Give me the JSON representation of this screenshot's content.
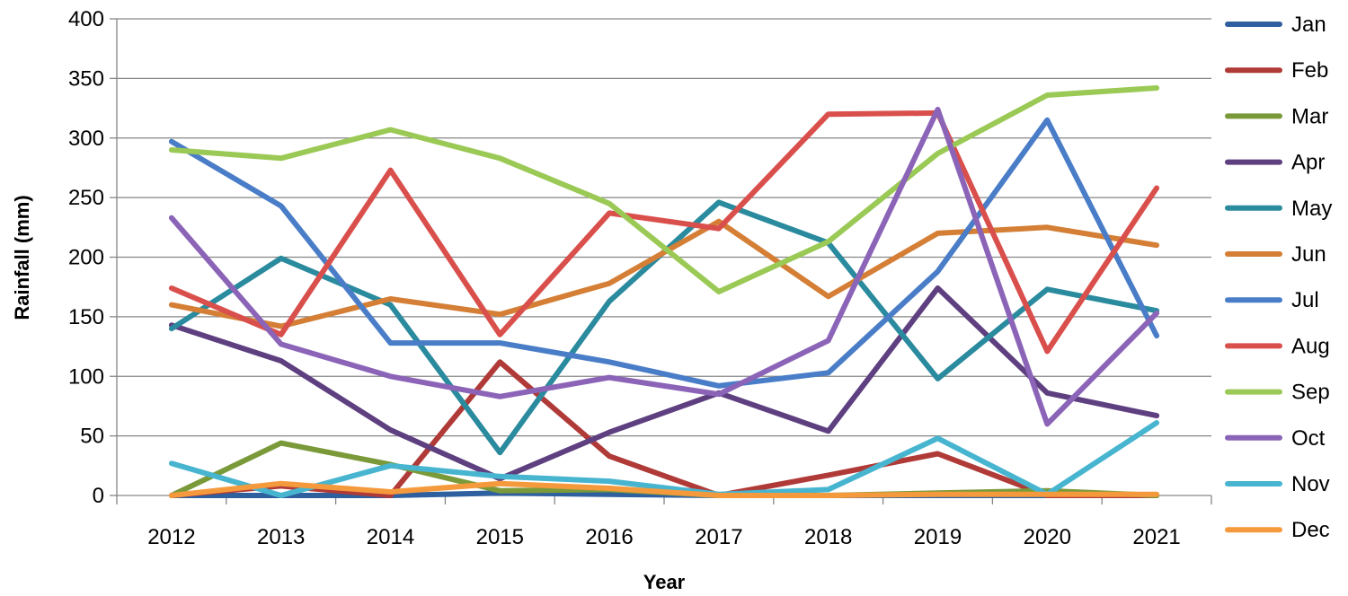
{
  "chart_data": {
    "type": "line",
    "xlabel": "Year",
    "ylabel": "Rainfall (mm)",
    "ylim": [
      0,
      400
    ],
    "yticks": [
      0,
      50,
      100,
      150,
      200,
      250,
      300,
      350,
      400
    ],
    "categories": [
      "2012",
      "2013",
      "2014",
      "2015",
      "2016",
      "2017",
      "2018",
      "2019",
      "2020",
      "2021"
    ],
    "grid": "horizontal",
    "legend_position": "right",
    "series": [
      {
        "name": "Jan",
        "color": "#2e5f9e",
        "values": [
          0,
          0,
          0,
          2,
          1,
          0,
          0,
          0,
          0,
          0
        ]
      },
      {
        "name": "Feb",
        "color": "#b03a37",
        "values": [
          0,
          8,
          0,
          112,
          33,
          0,
          17,
          35,
          0,
          0
        ]
      },
      {
        "name": "Mar",
        "color": "#7a9a3a",
        "values": [
          0,
          44,
          26,
          4,
          5,
          0,
          0,
          2,
          4,
          0
        ]
      },
      {
        "name": "Apr",
        "color": "#5e3f80",
        "values": [
          143,
          113,
          55,
          14,
          53,
          86,
          54,
          174,
          86,
          67
        ]
      },
      {
        "name": "May",
        "color": "#2a8a9e",
        "values": [
          140,
          199,
          160,
          36,
          163,
          246,
          212,
          98,
          173,
          155
        ]
      },
      {
        "name": "Jun",
        "color": "#d47f35",
        "values": [
          160,
          142,
          165,
          152,
          178,
          230,
          167,
          220,
          225,
          210
        ]
      },
      {
        "name": "Jul",
        "color": "#4a7dc7",
        "values": [
          297,
          243,
          128,
          128,
          112,
          92,
          103,
          188,
          315,
          134
        ]
      },
      {
        "name": "Aug",
        "color": "#d94f4c",
        "values": [
          174,
          135,
          273,
          135,
          237,
          224,
          320,
          321,
          121,
          258
        ]
      },
      {
        "name": "Sep",
        "color": "#9bc955",
        "values": [
          290,
          283,
          307,
          283,
          245,
          171,
          213,
          287,
          336,
          342
        ]
      },
      {
        "name": "Oct",
        "color": "#8b64b8",
        "values": [
          233,
          127,
          100,
          83,
          99,
          85,
          130,
          324,
          60,
          153
        ]
      },
      {
        "name": "Nov",
        "color": "#47b5cf",
        "values": [
          27,
          0,
          25,
          16,
          12,
          1,
          5,
          48,
          1,
          61
        ]
      },
      {
        "name": "Dec",
        "color": "#f59a3c",
        "values": [
          0,
          10,
          3,
          10,
          6,
          0,
          0,
          1,
          1,
          1
        ]
      }
    ]
  }
}
